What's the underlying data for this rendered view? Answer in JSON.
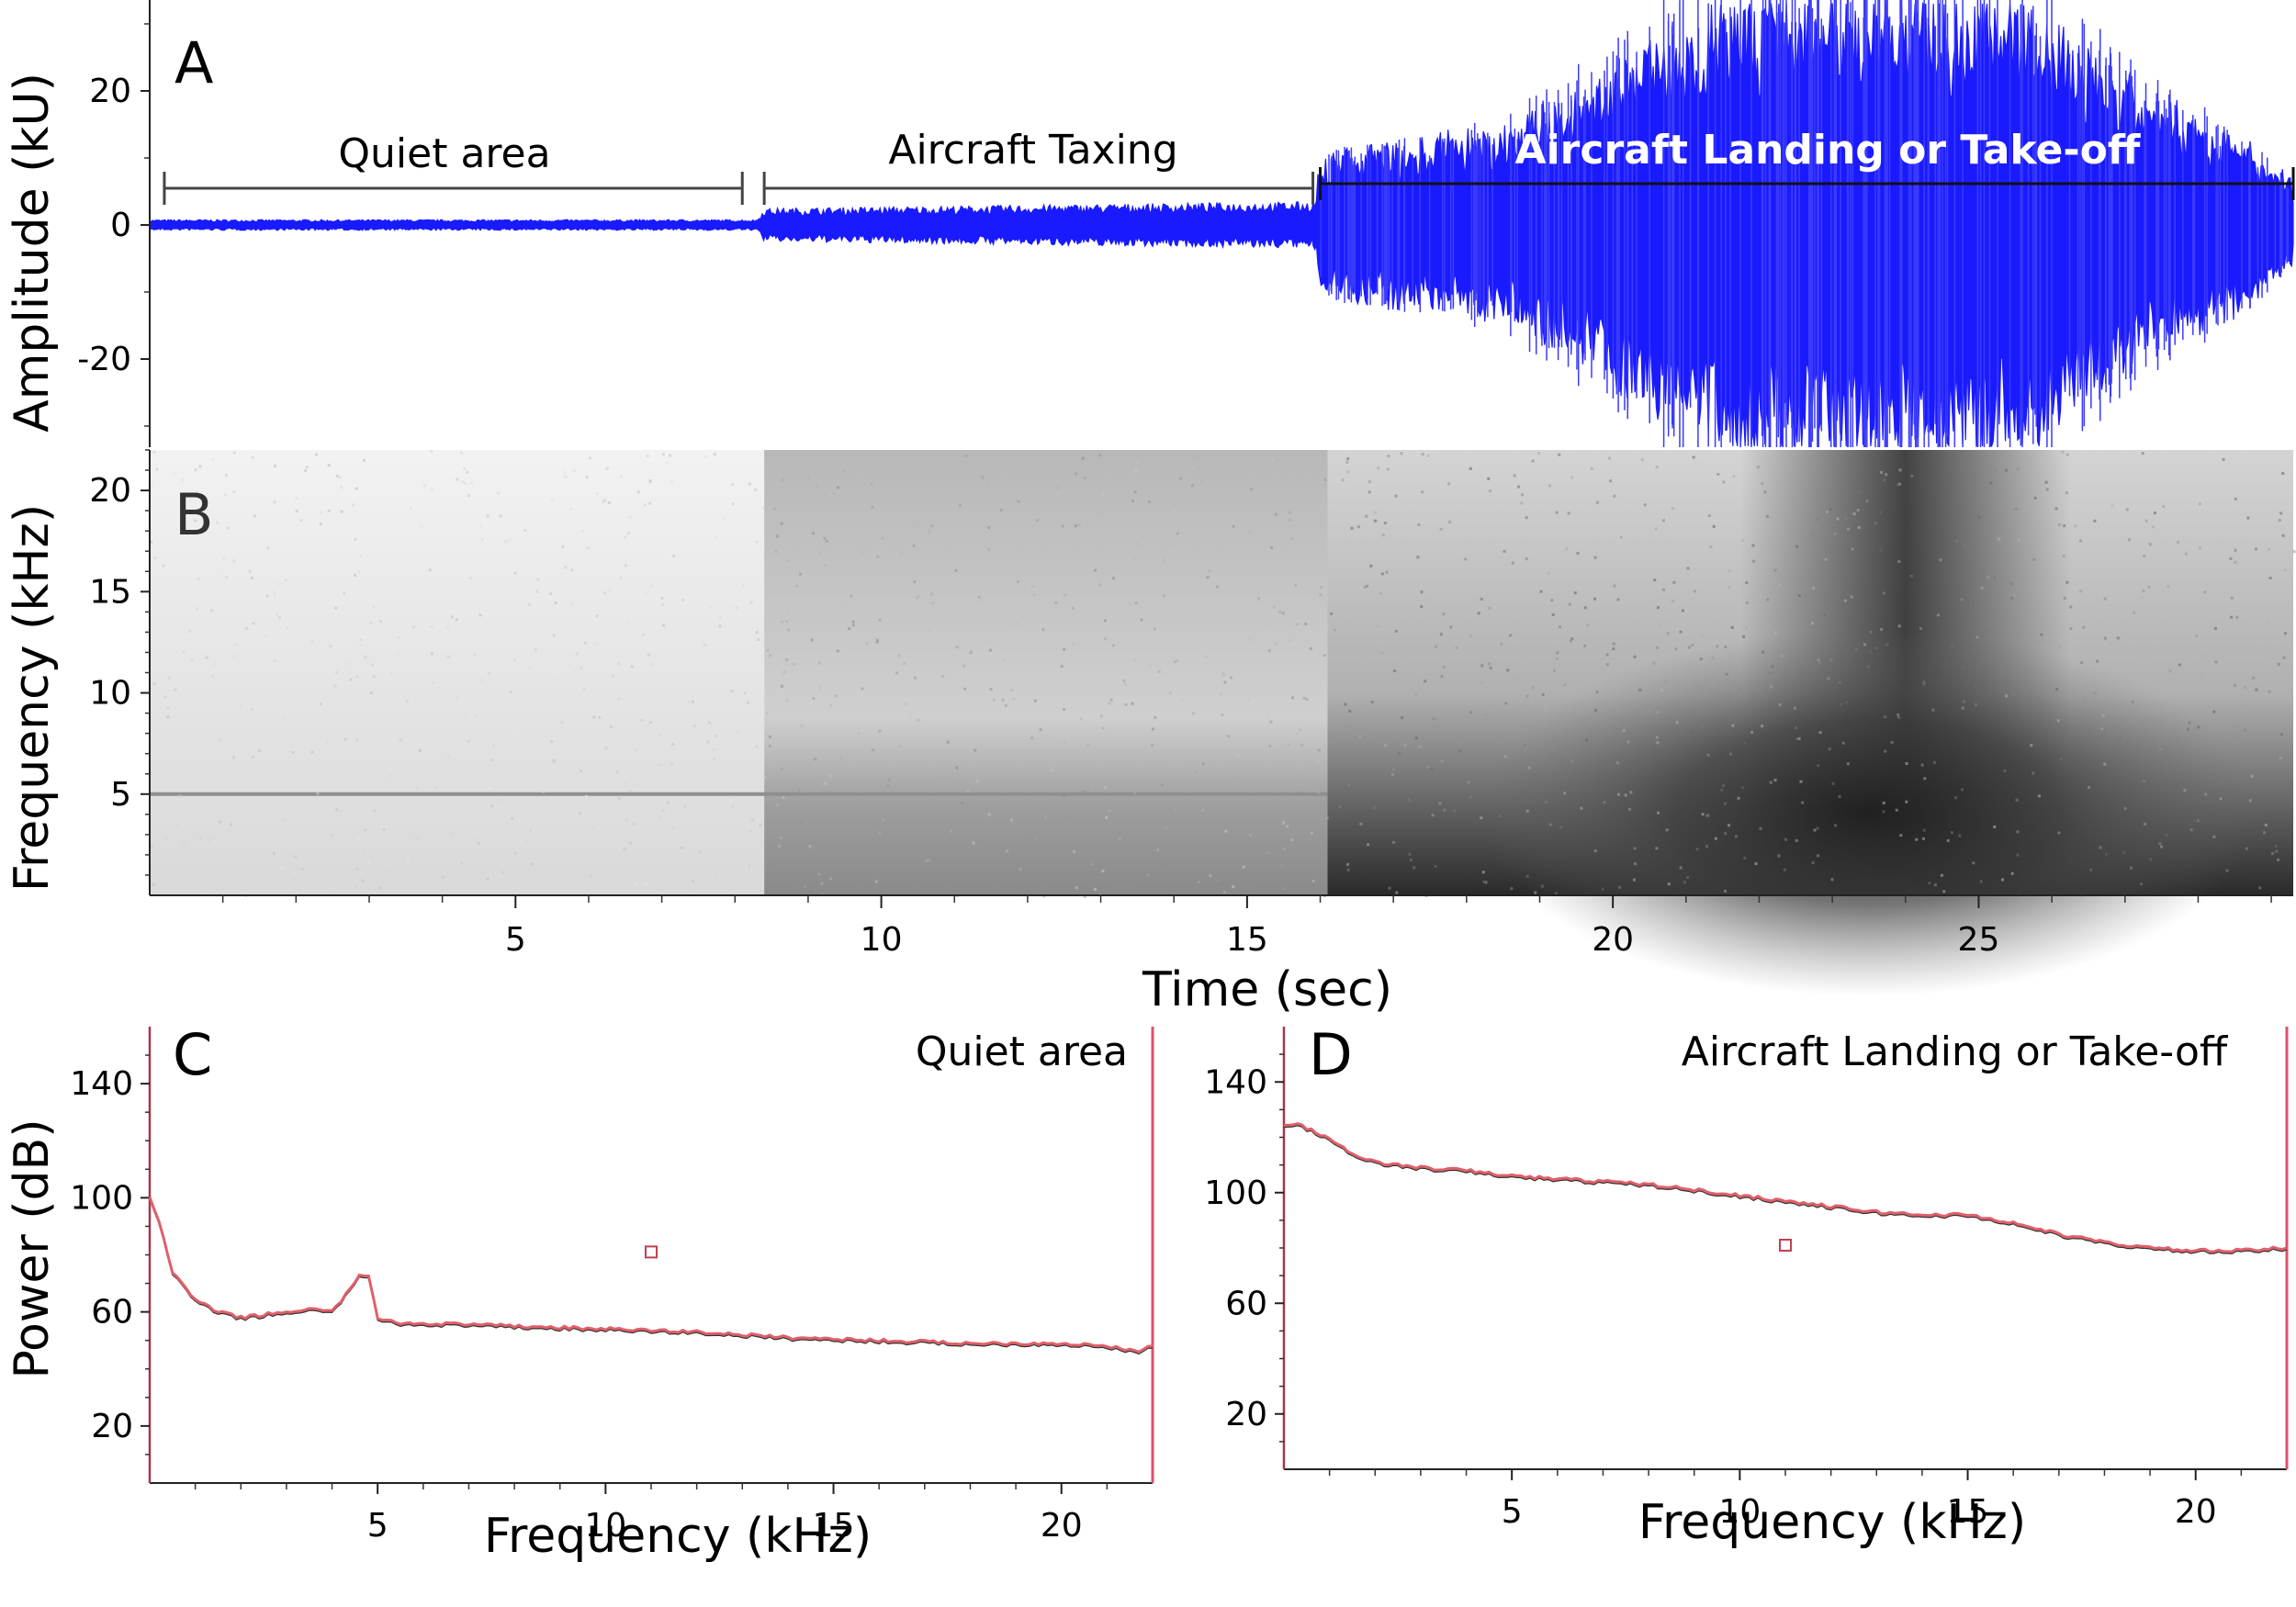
{
  "chart_data": [
    {
      "panel": "A",
      "type": "line",
      "xlabel": "Time (sec)",
      "ylabel": "Amplitude (kU)",
      "ylim": [
        -33,
        33
      ],
      "xlim": [
        0,
        29.3
      ],
      "yticks": [
        20,
        0,
        -20
      ],
      "y_tick_labels": [
        "20",
        "0",
        "-20"
      ],
      "color": "#1a1aff",
      "segments": [
        {
          "label": "Quiet area",
          "x_start": 0.2,
          "x_end": 8.1,
          "amplitude": 0.8
        },
        {
          "label": "Aircraft Taxing",
          "x_start": 8.4,
          "x_end": 15.9,
          "amplitude": 3
        },
        {
          "label": "Aircraft Landing or Take-off",
          "x_start": 16.0,
          "x_end": 29.3,
          "amplitude_peak": 33
        }
      ],
      "envelope": [
        {
          "t": 0,
          "amp": 0.8
        },
        {
          "t": 8.3,
          "amp": 0.8
        },
        {
          "t": 8.4,
          "amp": 2.5
        },
        {
          "t": 15.9,
          "amp": 3.5
        },
        {
          "t": 16.1,
          "amp": 9
        },
        {
          "t": 17.5,
          "amp": 11
        },
        {
          "t": 18.5,
          "amp": 13
        },
        {
          "t": 19.5,
          "amp": 19
        },
        {
          "t": 20.5,
          "amp": 26
        },
        {
          "t": 21.5,
          "amp": 33
        },
        {
          "t": 23,
          "amp": 33
        },
        {
          "t": 25.5,
          "amp": 33
        },
        {
          "t": 26.5,
          "amp": 25
        },
        {
          "t": 27.5,
          "amp": 17
        },
        {
          "t": 28.5,
          "amp": 12
        },
        {
          "t": 29.3,
          "amp": 5
        }
      ]
    },
    {
      "panel": "B",
      "type": "heatmap",
      "xlabel": "Time (sec)",
      "ylabel": "Frequency (kHz)",
      "xlim": [
        0,
        29.3
      ],
      "ylim": [
        0,
        22
      ],
      "xticks": [
        5,
        10,
        15,
        20,
        25
      ],
      "yticks": [
        20,
        15,
        10,
        5
      ],
      "tone_khz": 5,
      "description_segments": [
        {
          "x_start": 0,
          "x_end": 8.4,
          "level": "light"
        },
        {
          "x_start": 8.4,
          "x_end": 16.1,
          "level": "medium"
        },
        {
          "x_start": 16.1,
          "x_end": 29.3,
          "level": "dark",
          "peak_t": 24
        }
      ]
    },
    {
      "panel": "C",
      "type": "line",
      "title": "Quiet area",
      "xlabel": "Frequency (kHz)",
      "ylabel": "Power (dB)",
      "xlim": [
        0,
        22
      ],
      "ylim": [
        0,
        160
      ],
      "xticks": [
        5,
        10,
        15,
        20
      ],
      "yticks": [
        140,
        100,
        60,
        20
      ],
      "x": [
        0,
        0.2,
        0.5,
        1,
        1.5,
        2,
        2.5,
        3,
        3.5,
        4,
        4.3,
        4.6,
        4.8,
        5,
        5.5,
        6,
        8,
        10,
        12,
        14,
        16,
        18,
        20,
        21,
        21.6,
        22
      ],
      "values": [
        100,
        92,
        74,
        64,
        60,
        58,
        59,
        60,
        61,
        60,
        66,
        73,
        72,
        58,
        56,
        56,
        55,
        54,
        53,
        51,
        50,
        49,
        49,
        48,
        46,
        48
      ],
      "marker": {
        "x": 11,
        "y": 81
      }
    },
    {
      "panel": "D",
      "type": "line",
      "title": "Aircraft Landing or Take-off",
      "xlabel": "Frequency (kHz)",
      "ylabel": "",
      "xlim": [
        0,
        22
      ],
      "ylim": [
        0,
        160
      ],
      "xticks": [
        5,
        10,
        15,
        20
      ],
      "yticks": [
        140,
        100,
        60,
        20
      ],
      "x": [
        0,
        0.3,
        0.8,
        1.5,
        2,
        3,
        4,
        5,
        6,
        8,
        10,
        11,
        12,
        13,
        14,
        15,
        16,
        17,
        18,
        19,
        20,
        21,
        22
      ],
      "values": [
        124,
        125,
        121,
        114,
        111,
        109,
        108,
        106,
        105,
        103,
        99,
        97,
        95,
        93,
        92,
        92,
        89,
        85,
        82,
        80,
        79,
        79,
        80
      ],
      "marker": {
        "x": 11,
        "y": 81
      }
    }
  ],
  "labels": {
    "A": "A",
    "B": "B",
    "C": "C",
    "D": "D",
    "seg_quiet": "Quiet area",
    "seg_taxing": "Aircraft Taxing",
    "seg_landing": "Aircraft Landing or Take-off",
    "ylabel_A": "Amplitude (kU)",
    "ylabel_B": "Frequency (kHz)",
    "xlabel_AB": "Time (sec)",
    "ylabel_CD": "Power (dB)",
    "title_C": "Quiet area",
    "title_D": "Aircraft Landing or Take-off",
    "xlabel_C": "Frequency (kHz)",
    "xlabel_D": "Frequency (kHz)",
    "tick_5": "5",
    "tick_10": "10",
    "tick_15": "15",
    "tick_20": "20",
    "tick_25": "25",
    "tick_140": "140",
    "tick_100": "100",
    "tick_60": "60",
    "tick_0": "0",
    "tick_m20": "-20"
  }
}
